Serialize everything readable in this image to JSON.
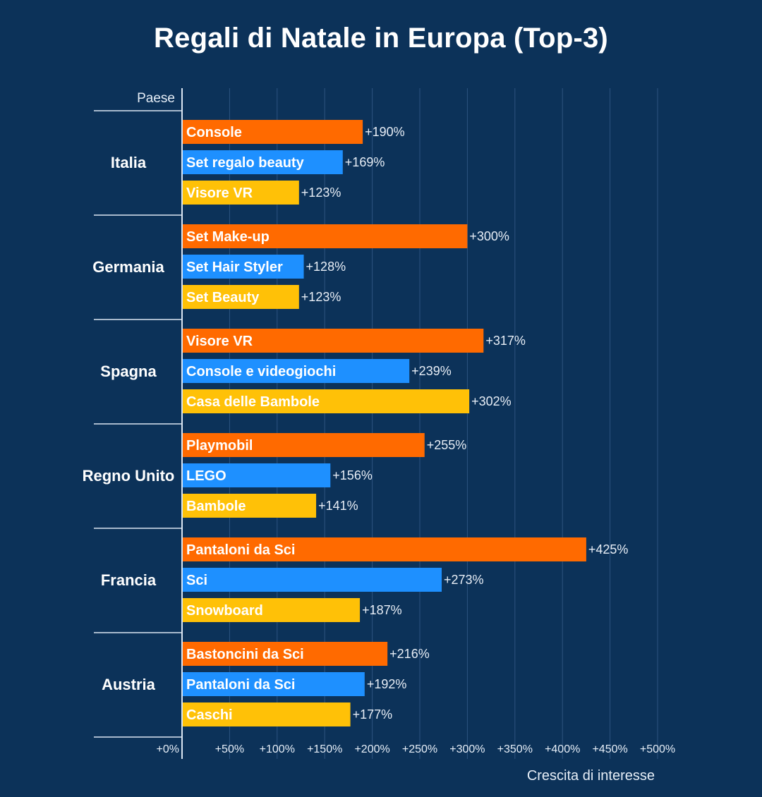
{
  "chart_data": {
    "type": "bar",
    "orientation": "horizontal",
    "title": "Regali di Natale in Europa (Top-3)",
    "ylabel": "Paese",
    "xlabel": "Crescita di interesse",
    "xlim": [
      0,
      500
    ],
    "xticks": [
      0,
      50,
      100,
      150,
      200,
      250,
      300,
      350,
      400,
      450,
      500
    ],
    "xtick_labels": [
      "+0%",
      "+50%",
      "+100%",
      "+150%",
      "+200%",
      "+250%",
      "+300%",
      "+350%",
      "+400%",
      "+450%",
      "+500%"
    ],
    "grid": true,
    "rank_colors": [
      "#ff6a00",
      "#1e90ff",
      "#ffc107"
    ],
    "groups": [
      {
        "country": "Italia",
        "items": [
          {
            "label": "Console",
            "value": 190,
            "value_label": "+190%"
          },
          {
            "label": "Set regalo beauty",
            "value": 169,
            "value_label": "+169%"
          },
          {
            "label": "Visore VR",
            "value": 123,
            "value_label": "+123%"
          }
        ]
      },
      {
        "country": "Germania",
        "items": [
          {
            "label": "Set Make-up",
            "value": 300,
            "value_label": "+300%"
          },
          {
            "label": "Set Hair Styler",
            "value": 128,
            "value_label": "+128%"
          },
          {
            "label": "Set Beauty",
            "value": 123,
            "value_label": "+123%"
          }
        ]
      },
      {
        "country": "Spagna",
        "items": [
          {
            "label": "Visore VR",
            "value": 317,
            "value_label": "+317%"
          },
          {
            "label": "Console e videogiochi",
            "value": 239,
            "value_label": "+239%"
          },
          {
            "label": "Casa delle Bambole",
            "value": 302,
            "value_label": "+302%"
          }
        ]
      },
      {
        "country": "Regno Unito",
        "items": [
          {
            "label": "Playmobil",
            "value": 255,
            "value_label": "+255%"
          },
          {
            "label": "LEGO",
            "value": 156,
            "value_label": "+156%"
          },
          {
            "label": "Bambole",
            "value": 141,
            "value_label": "+141%"
          }
        ]
      },
      {
        "country": "Francia",
        "items": [
          {
            "label": "Pantaloni da Sci",
            "value": 425,
            "value_label": "+425%"
          },
          {
            "label": "Sci",
            "value": 273,
            "value_label": "+273%"
          },
          {
            "label": "Snowboard",
            "value": 187,
            "value_label": "+187%"
          }
        ]
      },
      {
        "country": "Austria",
        "items": [
          {
            "label": "Bastoncini da Sci",
            "value": 216,
            "value_label": "+216%"
          },
          {
            "label": "Pantaloni da Sci",
            "value": 192,
            "value_label": "+192%"
          },
          {
            "label": "Caschi",
            "value": 177,
            "value_label": "+177%"
          }
        ]
      }
    ]
  }
}
